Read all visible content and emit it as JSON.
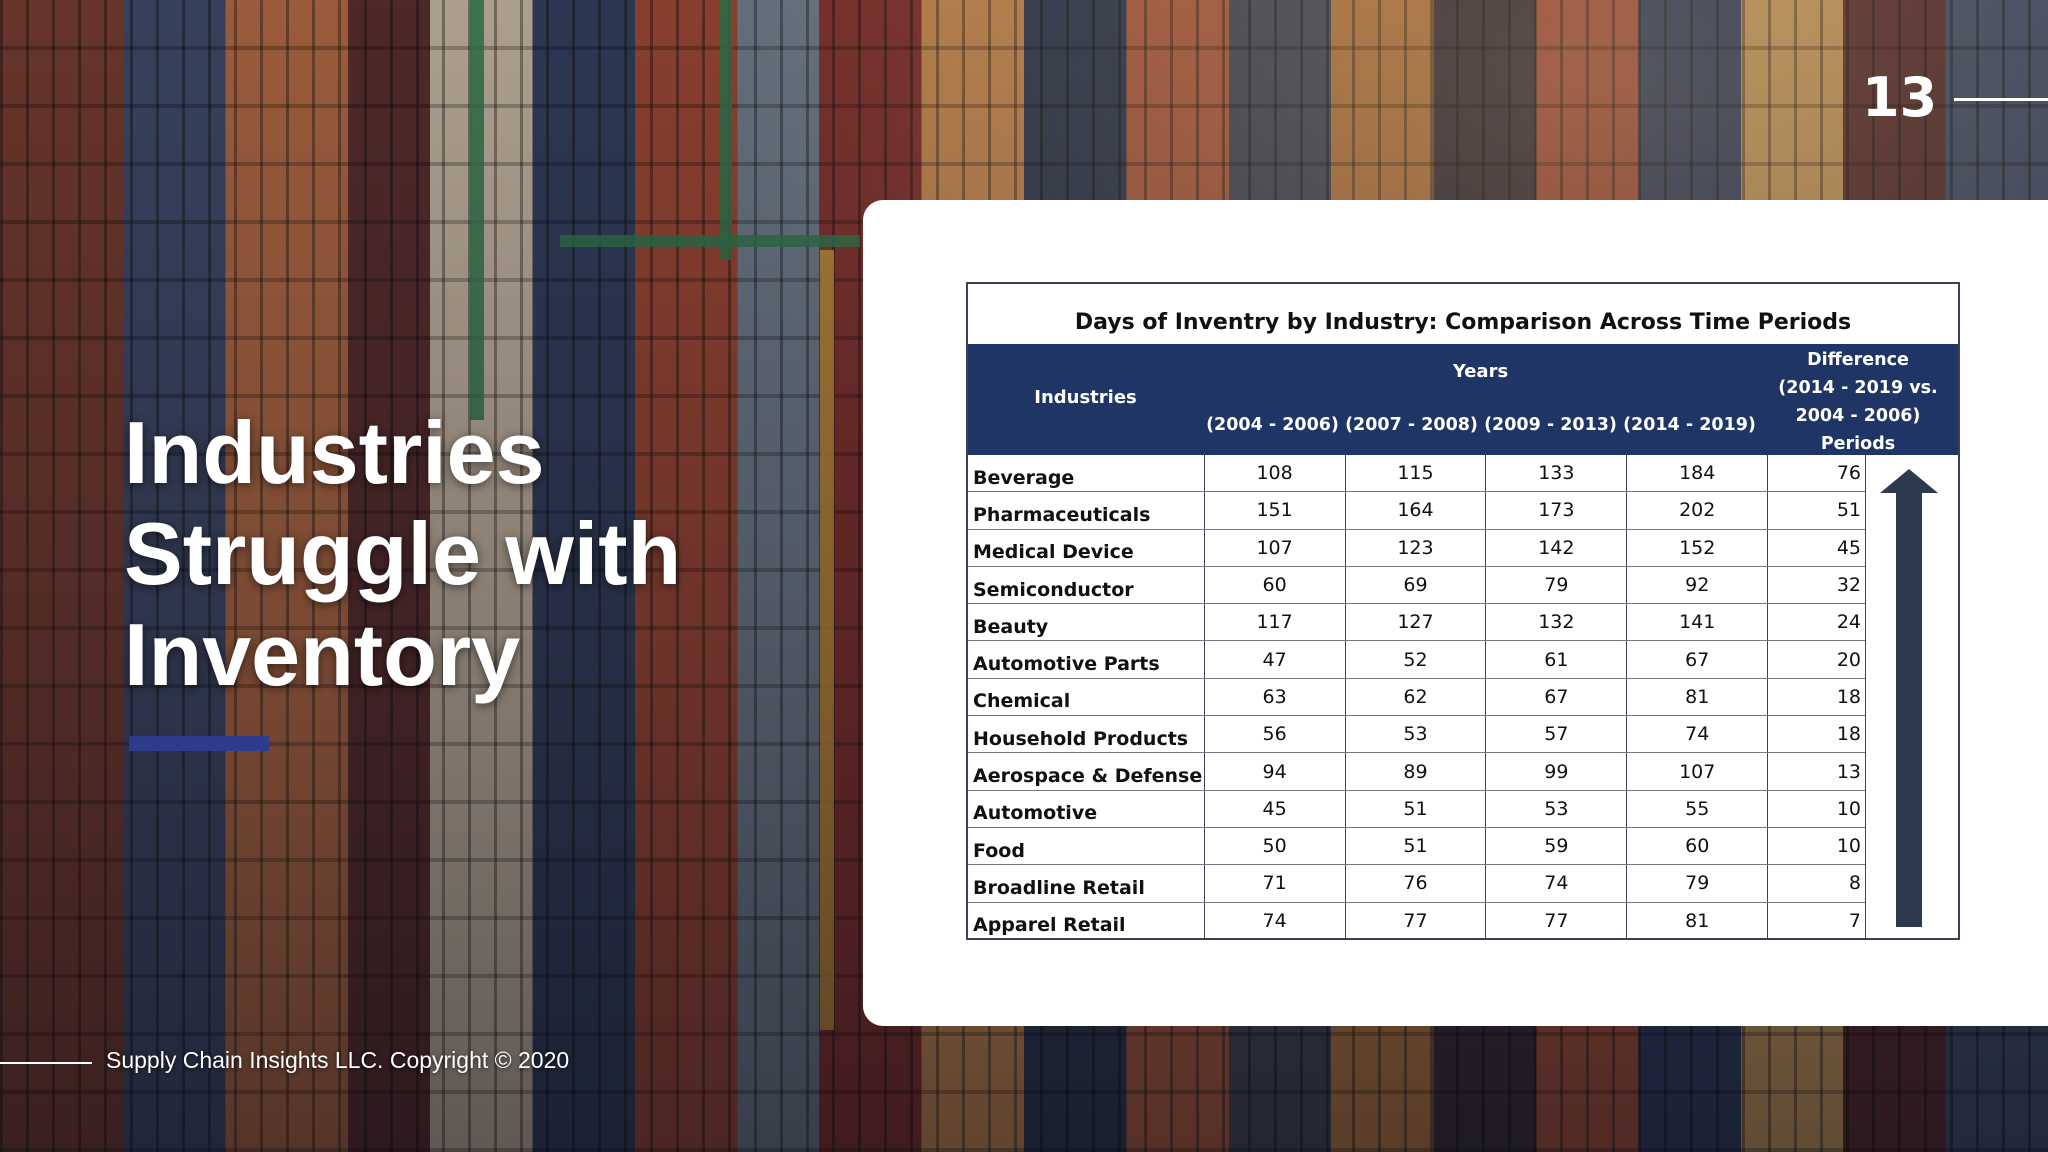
{
  "slide_number": "13",
  "title_lines": [
    "Industries",
    "Struggle with",
    "Inventory"
  ],
  "footer": "Supply Chain Insights LLC. Copyright © 2020",
  "table": {
    "title": "Days of Inventry by Industry: Comparison Across Time Periods",
    "header_industries": "Industries",
    "header_years": "Years",
    "periods": [
      "(2004 - 2006)",
      "(2007 - 2008)",
      "(2009 - 2013)",
      "(2014 - 2019)"
    ],
    "header_difference_lines": [
      "Difference",
      "(2014 - 2019 vs.",
      "2004 - 2006)",
      "Periods"
    ],
    "rows": [
      {
        "industry": "Beverage",
        "values": [
          "108",
          "115",
          "133",
          "184"
        ],
        "difference": "76"
      },
      {
        "industry": "Pharmaceuticals",
        "values": [
          "151",
          "164",
          "173",
          "202"
        ],
        "difference": "51"
      },
      {
        "industry": "Medical Device",
        "values": [
          "107",
          "123",
          "142",
          "152"
        ],
        "difference": "45"
      },
      {
        "industry": "Semiconductor",
        "values": [
          "60",
          "69",
          "79",
          "92"
        ],
        "difference": "32"
      },
      {
        "industry": "Beauty",
        "values": [
          "117",
          "127",
          "132",
          "141"
        ],
        "difference": "24"
      },
      {
        "industry": "Automotive Parts",
        "values": [
          "47",
          "52",
          "61",
          "67"
        ],
        "difference": "20"
      },
      {
        "industry": "Chemical",
        "values": [
          "63",
          "62",
          "67",
          "81"
        ],
        "difference": "18"
      },
      {
        "industry": "Household Products",
        "values": [
          "56",
          "53",
          "57",
          "74"
        ],
        "difference": "18"
      },
      {
        "industry": "Aerospace & Defense",
        "values": [
          "94",
          "89",
          "99",
          "107"
        ],
        "difference": "13"
      },
      {
        "industry": "Automotive",
        "values": [
          "45",
          "51",
          "53",
          "55"
        ],
        "difference": "10"
      },
      {
        "industry": "Food",
        "values": [
          "50",
          "51",
          "59",
          "60"
        ],
        "difference": "10"
      },
      {
        "industry": "Broadline Retail",
        "values": [
          "71",
          "76",
          "74",
          "79"
        ],
        "difference": "8"
      },
      {
        "industry": "Apparel Retail",
        "values": [
          "74",
          "77",
          "77",
          "81"
        ],
        "difference": "7"
      }
    ],
    "arrow_icon": "up-arrow-icon"
  },
  "colors": {
    "header_bg": "#1f3566",
    "accent_bar": "#2f3b8c",
    "arrow": "#2c3a4e"
  }
}
